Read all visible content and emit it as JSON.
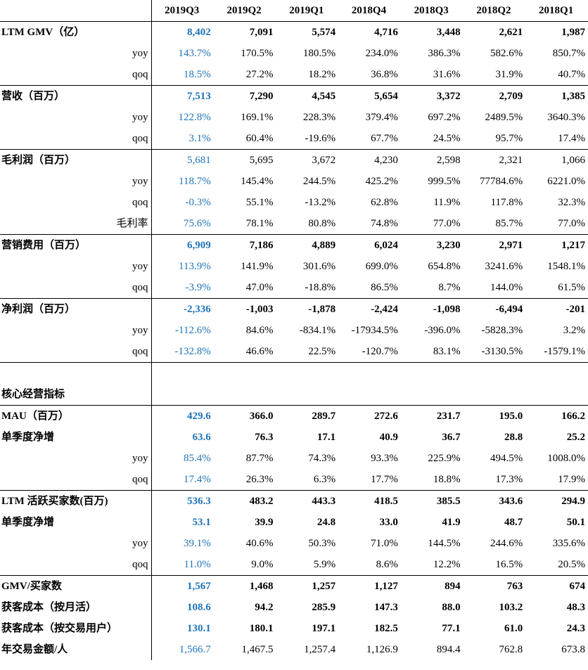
{
  "columns": [
    "2019Q3",
    "2019Q2",
    "2019Q1",
    "2018Q4",
    "2018Q3",
    "2018Q2",
    "2018Q1"
  ],
  "rows": [
    {
      "label": "LTM GMV（亿）",
      "kind": "main",
      "sep": true,
      "values": [
        "8,402",
        "7,091",
        "5,574",
        "4,716",
        "3,448",
        "2,621",
        "1,987"
      ]
    },
    {
      "label": "yoy",
      "kind": "sub",
      "values": [
        "143.7%",
        "170.5%",
        "180.5%",
        "234.0%",
        "386.3%",
        "582.6%",
        "850.7%"
      ]
    },
    {
      "label": "qoq",
      "kind": "sub",
      "values": [
        "18.5%",
        "27.2%",
        "18.2%",
        "36.8%",
        "31.6%",
        "31.9%",
        "40.7%"
      ]
    },
    {
      "label": "营收（百万）",
      "kind": "main",
      "sep": true,
      "values": [
        "7,513",
        "7,290",
        "4,545",
        "5,654",
        "3,372",
        "2,709",
        "1,385"
      ]
    },
    {
      "label": "yoy",
      "kind": "sub",
      "values": [
        "122.8%",
        "169.1%",
        "228.3%",
        "379.4%",
        "697.2%",
        "2489.5%",
        "3640.3%"
      ]
    },
    {
      "label": "qoq",
      "kind": "sub",
      "values": [
        "3.1%",
        "60.4%",
        "-19.6%",
        "67.7%",
        "24.5%",
        "95.7%",
        "17.4%"
      ]
    },
    {
      "label": "毛利润（百万）",
      "kind": "main-plain",
      "sep": true,
      "values": [
        "5,681",
        "5,695",
        "3,672",
        "4,230",
        "2,598",
        "2,321",
        "1,066"
      ]
    },
    {
      "label": "yoy",
      "kind": "sub",
      "values": [
        "118.7%",
        "145.4%",
        "244.5%",
        "425.2%",
        "999.5%",
        "77784.6%",
        "6221.0%"
      ]
    },
    {
      "label": "qoq",
      "kind": "sub",
      "values": [
        "-0.3%",
        "55.1%",
        "-13.2%",
        "62.8%",
        "11.9%",
        "117.8%",
        "32.3%"
      ]
    },
    {
      "label": "毛利率",
      "kind": "sub",
      "values": [
        "75.6%",
        "78.1%",
        "80.8%",
        "74.8%",
        "77.0%",
        "85.7%",
        "77.0%"
      ]
    },
    {
      "label": "营销费用（百万）",
      "kind": "main",
      "sep": true,
      "values": [
        "6,909",
        "7,186",
        "4,889",
        "6,024",
        "3,230",
        "2,971",
        "1,217"
      ]
    },
    {
      "label": "yoy",
      "kind": "sub",
      "values": [
        "113.9%",
        "141.9%",
        "301.6%",
        "699.0%",
        "654.8%",
        "3241.6%",
        "1548.1%"
      ]
    },
    {
      "label": "qoq",
      "kind": "sub",
      "values": [
        "-3.9%",
        "47.0%",
        "-18.8%",
        "86.5%",
        "8.7%",
        "144.0%",
        "61.5%"
      ]
    },
    {
      "label": "净利润（百万）",
      "kind": "main",
      "sep": true,
      "values": [
        "-2,336",
        "-1,003",
        "-1,878",
        "-2,424",
        "-1,098",
        "-6,494",
        "-201"
      ]
    },
    {
      "label": "yoy",
      "kind": "sub",
      "values": [
        "-112.6%",
        "84.6%",
        "-834.1%",
        "-17934.5%",
        "-396.0%",
        "-5828.3%",
        "3.2%"
      ]
    },
    {
      "label": "qoq",
      "kind": "sub",
      "values": [
        "-132.8%",
        "46.6%",
        "22.5%",
        "-120.7%",
        "83.1%",
        "-3130.5%",
        "-1579.1%"
      ]
    },
    {
      "label": "",
      "kind": "blank",
      "sep": true,
      "values": []
    },
    {
      "label": "核心经营指标",
      "kind": "section",
      "values": []
    },
    {
      "label": "MAU（百万）",
      "kind": "main",
      "sep": true,
      "values": [
        "429.6",
        "366.0",
        "289.7",
        "272.6",
        "231.7",
        "195.0",
        "166.2"
      ]
    },
    {
      "label": "单季度净增",
      "kind": "main",
      "values": [
        "63.6",
        "76.3",
        "17.1",
        "40.9",
        "36.7",
        "28.8",
        "25.2"
      ]
    },
    {
      "label": "yoy",
      "kind": "sub",
      "values": [
        "85.4%",
        "87.7%",
        "74.3%",
        "93.3%",
        "225.9%",
        "494.5%",
        "1008.0%"
      ]
    },
    {
      "label": "qoq",
      "kind": "sub",
      "values": [
        "17.4%",
        "26.3%",
        "6.3%",
        "17.7%",
        "18.8%",
        "17.3%",
        "17.9%"
      ]
    },
    {
      "label": "LTM 活跃买家数(百万)",
      "kind": "main",
      "sep": true,
      "values": [
        "536.3",
        "483.2",
        "443.3",
        "418.5",
        "385.5",
        "343.6",
        "294.9"
      ]
    },
    {
      "label": "单季度净增",
      "kind": "main",
      "values": [
        "53.1",
        "39.9",
        "24.8",
        "33.0",
        "41.9",
        "48.7",
        "50.1"
      ]
    },
    {
      "label": "yoy",
      "kind": "sub",
      "values": [
        "39.1%",
        "40.6%",
        "50.3%",
        "71.0%",
        "144.5%",
        "244.6%",
        "335.6%"
      ]
    },
    {
      "label": "qoq",
      "kind": "sub",
      "values": [
        "11.0%",
        "9.0%",
        "5.9%",
        "8.6%",
        "12.2%",
        "16.5%",
        "20.5%"
      ]
    },
    {
      "label": "GMV/买家数",
      "kind": "main",
      "sep": true,
      "values": [
        "1,567",
        "1,468",
        "1,257",
        "1,127",
        "894",
        "763",
        "674"
      ]
    },
    {
      "label": "获客成本（按月活）",
      "kind": "main",
      "values": [
        "108.6",
        "94.2",
        "285.9",
        "147.3",
        "88.0",
        "103.2",
        "48.3"
      ]
    },
    {
      "label": "获客成本（按交易用户）",
      "kind": "main",
      "values": [
        "130.1",
        "180.1",
        "197.1",
        "182.5",
        "77.1",
        "61.0",
        "24.3"
      ]
    },
    {
      "label": "年交易金额/人",
      "kind": "main-plainvals",
      "values": [
        "1,566.7",
        "1,467.5",
        "1,257.4",
        "1,126.9",
        "894.4",
        "762.8",
        "673.8"
      ]
    }
  ]
}
